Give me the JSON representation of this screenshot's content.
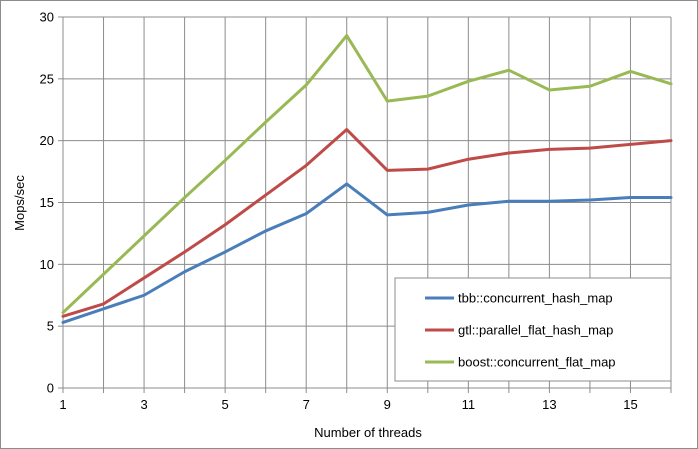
{
  "chart_data": {
    "type": "line",
    "title": "",
    "xlabel": "Number of threads",
    "ylabel": "Mops/sec",
    "xlim": [
      1,
      16
    ],
    "ylim": [
      0,
      30
    ],
    "x_ticks": [
      "1",
      "3",
      "5",
      "7",
      "9",
      "11",
      "13",
      "15"
    ],
    "y_ticks": [
      "0",
      "5",
      "10",
      "15",
      "20",
      "25",
      "30"
    ],
    "grid": true,
    "legend_position": "bottom-right",
    "x": [
      1,
      2,
      3,
      4,
      5,
      6,
      7,
      8,
      9,
      10,
      11,
      12,
      13,
      14,
      15,
      16
    ],
    "series": [
      {
        "name": "tbb::concurrent_hash_map",
        "color": "#4a7ebb",
        "values": [
          5.3,
          6.4,
          7.5,
          9.4,
          11.0,
          12.7,
          14.1,
          16.5,
          14.0,
          14.2,
          14.8,
          15.1,
          15.1,
          15.2,
          15.4,
          15.4
        ]
      },
      {
        "name": "gtl::parallel_flat_hash_map",
        "color": "#be4b48",
        "values": [
          5.8,
          6.8,
          8.9,
          11.0,
          13.2,
          15.6,
          18.0,
          20.9,
          17.6,
          17.7,
          18.5,
          19.0,
          19.3,
          19.4,
          19.7,
          20.0
        ]
      },
      {
        "name": "boost::concurrent_flat_map",
        "color": "#98b954",
        "values": [
          6.1,
          9.2,
          12.3,
          15.4,
          18.4,
          21.5,
          24.5,
          28.5,
          23.2,
          23.6,
          24.8,
          25.7,
          24.1,
          24.4,
          25.6,
          24.6
        ]
      }
    ]
  }
}
